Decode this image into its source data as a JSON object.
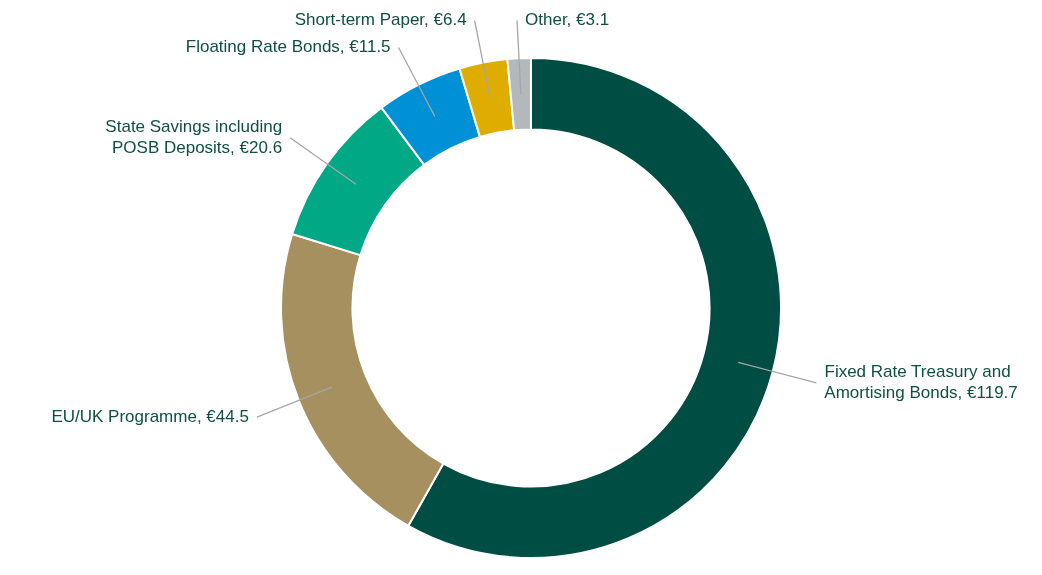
{
  "chart_data": {
    "type": "donut",
    "categories": [
      "Fixed Rate Treasury and Amortising Bonds",
      "EU/UK Programme",
      "State Savings including POSB Deposits",
      "Floating Rate Bonds",
      "Short-term Paper",
      "Other"
    ],
    "values": [
      119.7,
      44.5,
      20.6,
      11.5,
      6.4,
      3.1
    ],
    "value_labels": [
      "€119.7",
      "€44.5",
      "€20.6",
      "€11.5",
      "€6.4",
      "€3.1"
    ],
    "colors": [
      "#004d43",
      "#a69060",
      "#00a886",
      "#0090d6",
      "#dfac00",
      "#b3b8bd"
    ]
  }
}
